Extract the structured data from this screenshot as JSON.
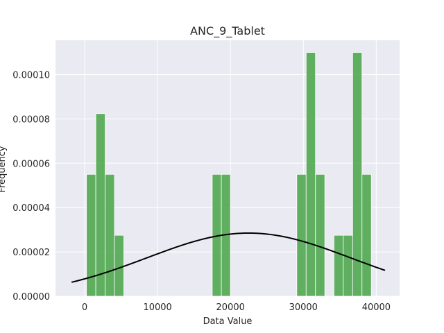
{
  "chart_data": {
    "type": "bar",
    "title": "ANC_9_Tablet",
    "xlabel": "Data Value",
    "ylabel": "Frequency",
    "xlim": [
      -4000,
      43200
    ],
    "ylim": [
      0,
      0.0001155
    ],
    "xticks": [
      0,
      10000,
      20000,
      30000,
      40000
    ],
    "yticks": [
      0,
      2e-05,
      4e-05,
      6e-05,
      8e-05,
      0.0001
    ],
    "ytick_labels": [
      "0.00000",
      "0.00002",
      "0.00004",
      "0.00006",
      "0.00008",
      "0.00010"
    ],
    "grid": true,
    "bar_color": "#4ca64c",
    "curve_color": "#000000",
    "background_color": "#eaeaf2",
    "bins": [
      {
        "x0": 250,
        "x1": 1530,
        "value": 5.5e-05
      },
      {
        "x0": 1530,
        "x1": 2810,
        "value": 8.24e-05
      },
      {
        "x0": 2810,
        "x1": 4090,
        "value": 5.5e-05
      },
      {
        "x0": 4090,
        "x1": 5370,
        "value": 2.75e-05
      },
      {
        "x0": 17500,
        "x1": 18750,
        "value": 5.5e-05
      },
      {
        "x0": 18750,
        "x1": 20000,
        "value": 5.5e-05
      },
      {
        "x0": 29100,
        "x1": 30380,
        "value": 5.5e-05
      },
      {
        "x0": 30380,
        "x1": 31660,
        "value": 0.00011
      },
      {
        "x0": 31660,
        "x1": 32940,
        "value": 5.5e-05
      },
      {
        "x0": 34200,
        "x1": 35480,
        "value": 2.75e-05
      },
      {
        "x0": 35480,
        "x1": 36760,
        "value": 2.75e-05
      },
      {
        "x0": 36760,
        "x1": 38040,
        "value": 0.00011
      },
      {
        "x0": 38040,
        "x1": 39320,
        "value": 5.5e-05
      }
    ],
    "density_curve": {
      "mean": 22500,
      "std": 14000,
      "x_range": [
        -1800,
        41200
      ]
    }
  }
}
